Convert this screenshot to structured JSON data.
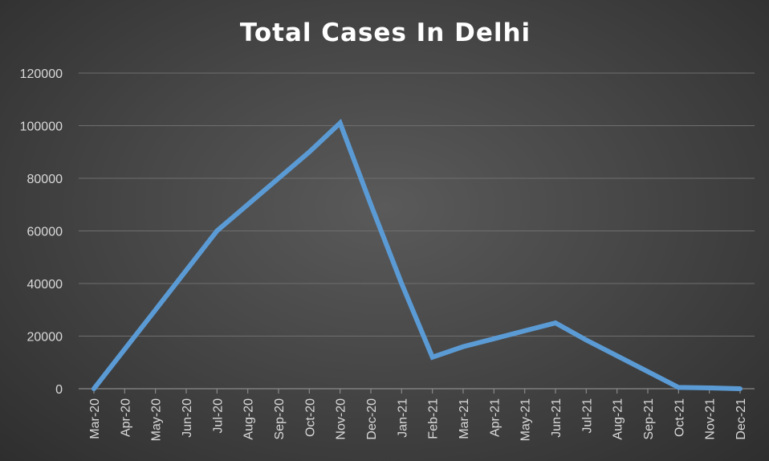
{
  "chart_data": {
    "type": "line",
    "title": "Total Cases In Delhi",
    "xlabel": "",
    "ylabel": "",
    "categories": [
      "Mar-20",
      "Apr-20",
      "May-20",
      "Jun-20",
      "Jul-20",
      "Aug-20",
      "Sep-20",
      "Oct-20",
      "Nov-20",
      "Dec-20",
      "Jan-21",
      "Feb-21",
      "Mar-21",
      "Apr-21",
      "May-21",
      "Jun-21",
      "Jul-21",
      "Aug-21",
      "Sep-21",
      "Oct-21",
      "Nov-21",
      "Dec-21"
    ],
    "series": [
      {
        "name": "",
        "values": [
          0,
          15000,
          30000,
          45000,
          60000,
          70000,
          80000,
          90000,
          101000,
          70000,
          40000,
          12000,
          16000,
          19000,
          22000,
          25000,
          18500,
          12500,
          6500,
          500,
          300,
          0
        ],
        "color": "#5b9bd5"
      }
    ],
    "ylim": [
      0,
      120000
    ],
    "yticks": [
      0,
      20000,
      40000,
      60000,
      80000,
      100000,
      120000
    ],
    "grid": true,
    "legend": "none"
  }
}
